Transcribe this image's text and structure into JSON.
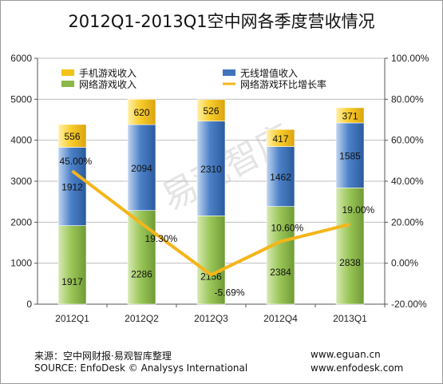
{
  "chart_data": {
    "type": "bar",
    "title": "2012Q1-2013Q1空中网各季度营收情况",
    "categories": [
      "2012Q1",
      "2012Q2",
      "2012Q3",
      "2012Q4",
      "2013Q1"
    ],
    "series": [
      {
        "name": "网络游戏收入",
        "kind": "stacked-bar",
        "color": "#8cb84a",
        "values": [
          1917,
          2286,
          2156,
          2384,
          2838
        ]
      },
      {
        "name": "无线增值收入",
        "kind": "stacked-bar",
        "color": "#3f74bd",
        "values": [
          1912,
          2094,
          2310,
          1462,
          1585
        ]
      },
      {
        "name": "手机游戏收入",
        "kind": "stacked-bar",
        "color": "#f5c21a",
        "values": [
          556,
          620,
          526,
          417,
          371
        ]
      },
      {
        "name": "网络游戏环比增长率",
        "kind": "line",
        "axis": "right",
        "color": "#f5b51a",
        "values": [
          45.0,
          19.3,
          -5.69,
          10.6,
          19.0
        ],
        "labels": [
          "45.00%",
          "19.30%",
          "-5.69%",
          "10.60%",
          "19.00%"
        ]
      }
    ],
    "y_left": {
      "ylim": [
        0,
        6000
      ],
      "ticks": [
        "0",
        "1000",
        "2000",
        "3000",
        "4000",
        "5000",
        "6000"
      ]
    },
    "y_right": {
      "ylim": [
        -20,
        100
      ],
      "ticks": [
        "-20.00%",
        "0.00%",
        "20.00%",
        "40.00%",
        "60.00%",
        "80.00%",
        "100.00%"
      ]
    },
    "grid": true,
    "legend": "top-left, inside plot, two columns",
    "watermark": "易观智库"
  },
  "footer": {
    "source_cn": "来源：空中网财报·易观智库整理",
    "source_en": "SOURCE: EnfoDesk © Analysys International",
    "site1": "www.eguan.cn",
    "site2": "www.enfodesk.com"
  }
}
